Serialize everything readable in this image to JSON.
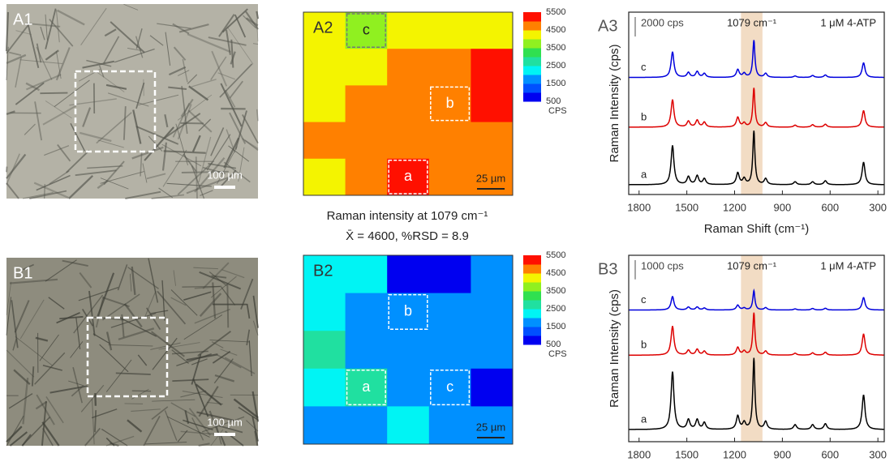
{
  "panels": {
    "A1": {
      "label": "A1",
      "scale_bar": "100 µm"
    },
    "B1": {
      "label": "B1",
      "scale_bar": "100 µm"
    },
    "A2": {
      "label": "A2",
      "scale_bar": "25 µm",
      "values": [
        [
          4200,
          3700,
          4200,
          4200,
          4200
        ],
        [
          4200,
          4200,
          4700,
          4700,
          5200
        ],
        [
          4200,
          4700,
          4700,
          4700,
          5200
        ],
        [
          4700,
          4700,
          4700,
          4700,
          4700
        ],
        [
          4200,
          4700,
          5200,
          4700,
          4700
        ]
      ],
      "boxes": [
        "a",
        "b",
        "c"
      ],
      "caption": [
        "Raman intensity at 1079 cm⁻¹",
        "X̄ = 4600, %RSD = 8.9"
      ]
    },
    "B2": {
      "label": "B2",
      "scale_bar": "25 µm",
      "values": [
        [
          2200,
          2200,
          800,
          800,
          1700
        ],
        [
          2200,
          1700,
          1700,
          1700,
          1700
        ],
        [
          2600,
          1700,
          1700,
          1700,
          1700
        ],
        [
          2200,
          2600,
          1700,
          1700,
          800
        ],
        [
          1700,
          1700,
          2200,
          1700,
          1700
        ]
      ],
      "boxes": [
        "a",
        "b",
        "c"
      ]
    },
    "colorbar": {
      "ticks": [
        5500,
        4500,
        3500,
        2500,
        1500,
        500
      ],
      "label": "CPS",
      "colors": [
        "#0000f0",
        "#0050ff",
        "#0090ff",
        "#00f4f4",
        "#20e0a0",
        "#30e050",
        "#90f020",
        "#f4f400",
        "#ff8000",
        "#ff1000"
      ]
    },
    "peaks": [
      1590,
      1490,
      1435,
      1390,
      1180,
      1140,
      1079,
      1005,
      820,
      710,
      630,
      390
    ],
    "A3": {
      "label": "A3",
      "scale": "2000 cps",
      "scale_value": 2000,
      "band_label": "1079 cm⁻¹",
      "sample": "1 μM 4-ATP",
      "ylabel": "Raman Intensity (cps)",
      "xlabel": "Raman Shift (cm⁻¹)",
      "xlim": [
        1865,
        260
      ],
      "xticks": [
        1800,
        1500,
        1200,
        900,
        600,
        300
      ],
      "ylim": [
        0,
        18700
      ],
      "band": [
        1160,
        1025
      ],
      "traces": [
        {
          "name": "c",
          "color": "#0000dd",
          "offset": 12000,
          "heights": [
            2600,
            500,
            600,
            400,
            800,
            400,
            3800,
            400,
            150,
            200,
            250,
            1500
          ]
        },
        {
          "name": "b",
          "color": "#dd0000",
          "offset": 6900,
          "heights": [
            2800,
            600,
            700,
            500,
            1000,
            400,
            4000,
            450,
            200,
            250,
            300,
            1700
          ]
        },
        {
          "name": "a",
          "color": "#000000",
          "offset": 1000,
          "heights": [
            4000,
            800,
            900,
            600,
            1200,
            600,
            5500,
            600,
            300,
            300,
            400,
            2300
          ]
        }
      ]
    },
    "B3": {
      "label": "B3",
      "scale": "1000 cps",
      "scale_value": 1000,
      "band_label": "1079 cm⁻¹",
      "sample": "1 μM 4-ATP",
      "ylabel": "Raman Intensity (cps)",
      "xlim": [
        1865,
        260
      ],
      "xticks": [
        1800,
        1500,
        1200,
        900,
        600,
        300
      ],
      "ylim": [
        0,
        9700
      ],
      "band": [
        1160,
        1025
      ],
      "traces": [
        {
          "name": "c",
          "color": "#0000dd",
          "offset": 6850,
          "heights": [
            700,
            150,
            150,
            100,
            250,
            100,
            1000,
            120,
            60,
            80,
            90,
            650
          ]
        },
        {
          "name": "b",
          "color": "#dd0000",
          "offset": 4500,
          "heights": [
            1500,
            250,
            300,
            200,
            400,
            200,
            2200,
            200,
            100,
            120,
            150,
            1100
          ]
        },
        {
          "name": "a",
          "color": "#000000",
          "offset": 630,
          "heights": [
            3000,
            500,
            500,
            350,
            700,
            350,
            3700,
            400,
            250,
            250,
            300,
            1800
          ]
        }
      ]
    }
  }
}
